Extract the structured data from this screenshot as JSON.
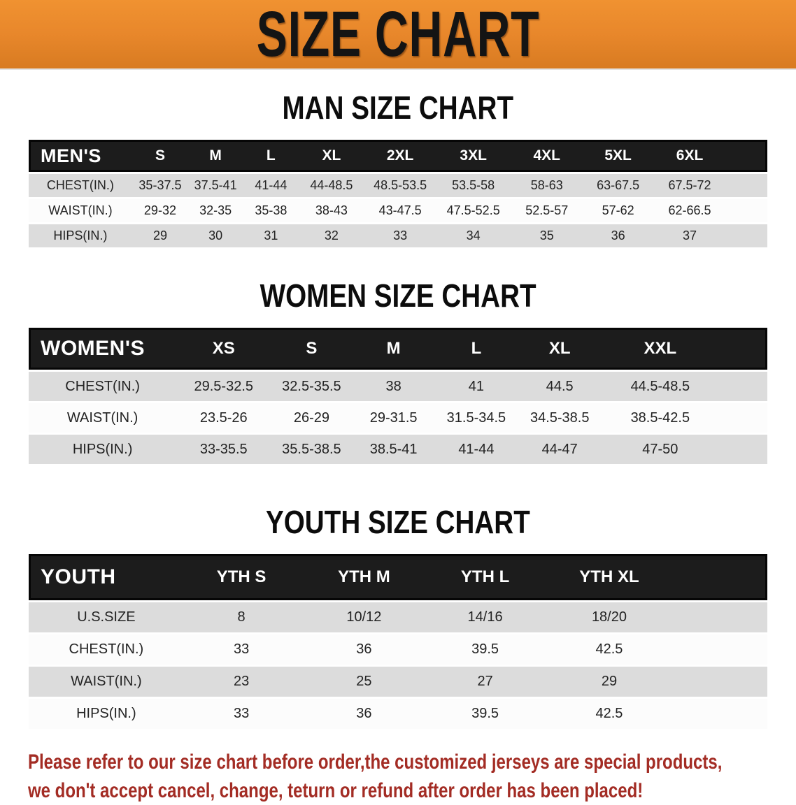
{
  "banner": {
    "title": "SIZE CHART",
    "bg_color": "#E8872B",
    "text_color": "#141414"
  },
  "colors": {
    "header_black": "#1C1C1C",
    "row_gray": "#DCDCDC",
    "row_white": "#FCFCFC",
    "note_red": "#A32C24"
  },
  "sections": [
    {
      "title": "MAN SIZE CHART",
      "table": {
        "header": [
          "MEN'S",
          "S",
          "M",
          "L",
          "XL",
          "2XL",
          "3XL",
          "4XL",
          "5XL",
          "6XL"
        ],
        "rows": [
          {
            "label": "CHEST(IN.)",
            "values": [
              "35-37.5",
              "37.5-41",
              "41-44",
              "44-48.5",
              "48.5-53.5",
              "53.5-58",
              "58-63",
              "63-67.5",
              "67.5-72"
            ]
          },
          {
            "label": "WAIST(IN.)",
            "values": [
              "29-32",
              "32-35",
              "35-38",
              "38-43",
              "43-47.5",
              "47.5-52.5",
              "52.5-57",
              "57-62",
              "62-66.5"
            ]
          },
          {
            "label": "HIPS(IN.)",
            "values": [
              "29",
              "30",
              "31",
              "32",
              "33",
              "34",
              "35",
              "36",
              "37"
            ]
          }
        ]
      }
    },
    {
      "title": "WOMEN SIZE CHART",
      "table": {
        "header": [
          "WOMEN'S",
          "XS",
          "S",
          "M",
          "L",
          "XL",
          "XXL"
        ],
        "rows": [
          {
            "label": "CHEST(IN.)",
            "values": [
              "29.5-32.5",
              "32.5-35.5",
              "38",
              "41",
              "44.5",
              "44.5-48.5"
            ]
          },
          {
            "label": "WAIST(IN.)",
            "values": [
              "23.5-26",
              "26-29",
              "29-31.5",
              "31.5-34.5",
              "34.5-38.5",
              "38.5-42.5"
            ]
          },
          {
            "label": "HIPS(IN.)",
            "values": [
              "33-35.5",
              "35.5-38.5",
              "38.5-41",
              "41-44",
              "44-47",
              "47-50"
            ]
          }
        ]
      }
    },
    {
      "title": "YOUTH SIZE CHART",
      "table": {
        "header": [
          "YOUTH",
          "YTH S",
          "YTH M",
          "YTH L",
          "YTH XL"
        ],
        "rows": [
          {
            "label": "U.S.SIZE",
            "values": [
              "8",
              "10/12",
              "14/16",
              "18/20"
            ]
          },
          {
            "label": "CHEST(IN.)",
            "values": [
              "33",
              "36",
              "39.5",
              "42.5"
            ]
          },
          {
            "label": "WAIST(IN.)",
            "values": [
              "23",
              "25",
              "27",
              "29"
            ]
          },
          {
            "label": "HIPS(IN.)",
            "values": [
              "33",
              "36",
              "39.5",
              "42.5"
            ]
          }
        ]
      }
    }
  ],
  "note": {
    "line1": "Please refer to our size chart before order,the customized jerseys are special products,",
    "line2": "we don't accept cancel, change, teturn or refund after order has been placed!"
  }
}
